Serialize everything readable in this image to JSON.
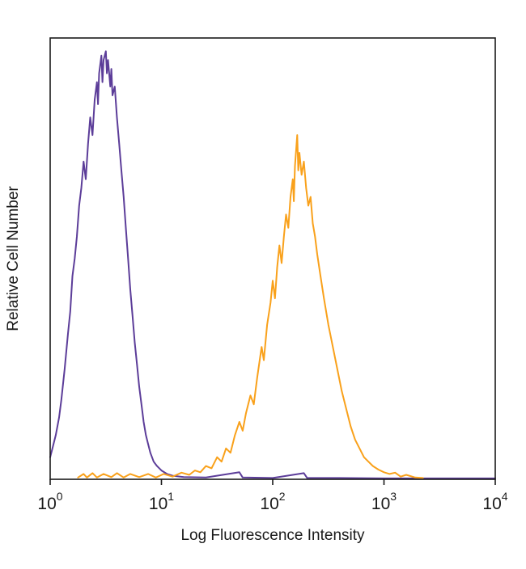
{
  "chart_data": {
    "type": "line",
    "subtype": "flow-cytometry-histogram-overlay",
    "title": "",
    "xlabel": "Log Fluorescence Intensity",
    "ylabel": "Relative Cell Number",
    "x_scale": "log10",
    "x_range_log": [
      0,
      4
    ],
    "ylim": [
      0,
      1
    ],
    "grid": false,
    "legend_position": "none",
    "x_ticks": [
      {
        "base": "10",
        "exp": "0",
        "log": 0
      },
      {
        "base": "10",
        "exp": "1",
        "log": 1
      },
      {
        "base": "10",
        "exp": "2",
        "log": 2
      },
      {
        "base": "10",
        "exp": "3",
        "log": 3
      },
      {
        "base": "10",
        "exp": "4",
        "log": 4
      }
    ],
    "series": [
      {
        "name": "control-purple",
        "color": "#5C3D99",
        "peak_log_x": 0.5,
        "peak_height": 0.97,
        "points": [
          [
            0.0,
            0.05
          ],
          [
            0.02,
            0.07
          ],
          [
            0.05,
            0.1
          ],
          [
            0.08,
            0.14
          ],
          [
            0.1,
            0.18
          ],
          [
            0.13,
            0.25
          ],
          [
            0.16,
            0.33
          ],
          [
            0.18,
            0.38
          ],
          [
            0.2,
            0.46
          ],
          [
            0.22,
            0.5
          ],
          [
            0.24,
            0.55
          ],
          [
            0.26,
            0.62
          ],
          [
            0.28,
            0.66
          ],
          [
            0.3,
            0.72
          ],
          [
            0.32,
            0.68
          ],
          [
            0.34,
            0.76
          ],
          [
            0.36,
            0.82
          ],
          [
            0.38,
            0.78
          ],
          [
            0.4,
            0.86
          ],
          [
            0.42,
            0.9
          ],
          [
            0.43,
            0.85
          ],
          [
            0.44,
            0.92
          ],
          [
            0.46,
            0.96
          ],
          [
            0.47,
            0.9
          ],
          [
            0.48,
            0.95
          ],
          [
            0.5,
            0.97
          ],
          [
            0.51,
            0.92
          ],
          [
            0.52,
            0.95
          ],
          [
            0.54,
            0.89
          ],
          [
            0.55,
            0.93
          ],
          [
            0.56,
            0.87
          ],
          [
            0.58,
            0.89
          ],
          [
            0.6,
            0.82
          ],
          [
            0.62,
            0.76
          ],
          [
            0.64,
            0.7
          ],
          [
            0.66,
            0.64
          ],
          [
            0.68,
            0.57
          ],
          [
            0.7,
            0.5
          ],
          [
            0.72,
            0.43
          ],
          [
            0.74,
            0.37
          ],
          [
            0.76,
            0.31
          ],
          [
            0.78,
            0.26
          ],
          [
            0.8,
            0.21
          ],
          [
            0.82,
            0.17
          ],
          [
            0.84,
            0.13
          ],
          [
            0.86,
            0.1
          ],
          [
            0.88,
            0.08
          ],
          [
            0.9,
            0.06
          ],
          [
            0.93,
            0.04
          ],
          [
            0.96,
            0.03
          ],
          [
            1.0,
            0.02
          ],
          [
            1.05,
            0.012
          ],
          [
            1.1,
            0.008
          ],
          [
            1.2,
            0.005
          ],
          [
            1.4,
            0.004
          ],
          [
            1.7,
            0.016
          ],
          [
            1.73,
            0.004
          ],
          [
            2.0,
            0.003
          ],
          [
            2.28,
            0.014
          ],
          [
            2.31,
            0.003
          ],
          [
            2.6,
            0.003
          ],
          [
            3.0,
            0.002
          ],
          [
            3.5,
            0.002
          ],
          [
            4.0,
            0.002
          ]
        ]
      },
      {
        "name": "stained-orange",
        "color": "#F9A11B",
        "peak_log_x": 2.22,
        "peak_height": 0.78,
        "points": [
          [
            0.25,
            0.004
          ],
          [
            0.3,
            0.012
          ],
          [
            0.33,
            0.004
          ],
          [
            0.38,
            0.014
          ],
          [
            0.42,
            0.004
          ],
          [
            0.48,
            0.012
          ],
          [
            0.55,
            0.005
          ],
          [
            0.6,
            0.014
          ],
          [
            0.66,
            0.004
          ],
          [
            0.72,
            0.012
          ],
          [
            0.8,
            0.005
          ],
          [
            0.88,
            0.012
          ],
          [
            0.95,
            0.004
          ],
          [
            1.02,
            0.012
          ],
          [
            1.1,
            0.006
          ],
          [
            1.18,
            0.015
          ],
          [
            1.25,
            0.01
          ],
          [
            1.3,
            0.02
          ],
          [
            1.35,
            0.016
          ],
          [
            1.4,
            0.03
          ],
          [
            1.45,
            0.025
          ],
          [
            1.5,
            0.05
          ],
          [
            1.54,
            0.04
          ],
          [
            1.58,
            0.07
          ],
          [
            1.62,
            0.06
          ],
          [
            1.66,
            0.1
          ],
          [
            1.7,
            0.13
          ],
          [
            1.73,
            0.11
          ],
          [
            1.76,
            0.15
          ],
          [
            1.8,
            0.19
          ],
          [
            1.83,
            0.17
          ],
          [
            1.86,
            0.23
          ],
          [
            1.9,
            0.3
          ],
          [
            1.92,
            0.27
          ],
          [
            1.95,
            0.35
          ],
          [
            1.98,
            0.4
          ],
          [
            2.0,
            0.45
          ],
          [
            2.02,
            0.41
          ],
          [
            2.04,
            0.48
          ],
          [
            2.06,
            0.53
          ],
          [
            2.08,
            0.49
          ],
          [
            2.1,
            0.55
          ],
          [
            2.12,
            0.6
          ],
          [
            2.14,
            0.57
          ],
          [
            2.16,
            0.64
          ],
          [
            2.18,
            0.68
          ],
          [
            2.19,
            0.63
          ],
          [
            2.2,
            0.71
          ],
          [
            2.22,
            0.78
          ],
          [
            2.23,
            0.7
          ],
          [
            2.24,
            0.74
          ],
          [
            2.26,
            0.69
          ],
          [
            2.28,
            0.72
          ],
          [
            2.3,
            0.66
          ],
          [
            2.32,
            0.62
          ],
          [
            2.34,
            0.64
          ],
          [
            2.36,
            0.58
          ],
          [
            2.38,
            0.55
          ],
          [
            2.4,
            0.51
          ],
          [
            2.43,
            0.46
          ],
          [
            2.46,
            0.41
          ],
          [
            2.5,
            0.35
          ],
          [
            2.54,
            0.3
          ],
          [
            2.58,
            0.25
          ],
          [
            2.62,
            0.2
          ],
          [
            2.66,
            0.16
          ],
          [
            2.7,
            0.12
          ],
          [
            2.74,
            0.09
          ],
          [
            2.78,
            0.07
          ],
          [
            2.82,
            0.05
          ],
          [
            2.86,
            0.04
          ],
          [
            2.9,
            0.03
          ],
          [
            2.95,
            0.022
          ],
          [
            3.0,
            0.016
          ],
          [
            3.05,
            0.012
          ],
          [
            3.1,
            0.015
          ],
          [
            3.15,
            0.006
          ],
          [
            3.2,
            0.01
          ],
          [
            3.28,
            0.004
          ],
          [
            3.35,
            0.003
          ]
        ]
      }
    ]
  },
  "frame": {
    "border_color": "#1a1a1a",
    "background_color": "#ffffff"
  }
}
